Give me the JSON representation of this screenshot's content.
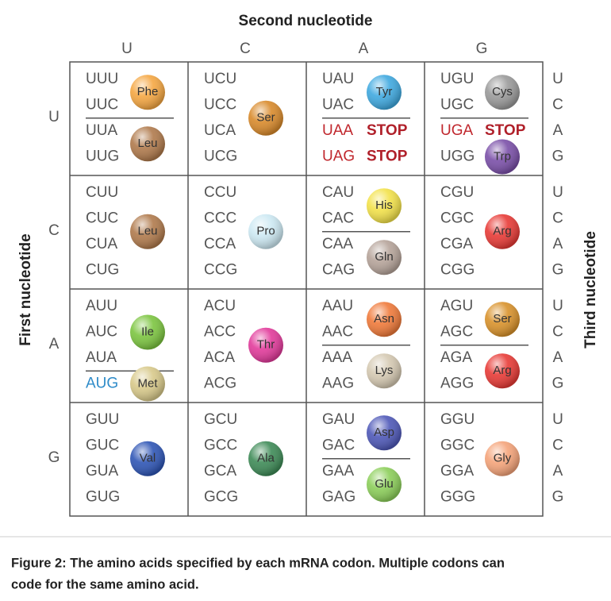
{
  "title": "Second nucleotide",
  "first_label": "First nucleotide",
  "third_label": "Third nucleotide",
  "columns": [
    "U",
    "C",
    "A",
    "G"
  ],
  "rows": [
    "U",
    "C",
    "A",
    "G"
  ],
  "third_letters": [
    "U",
    "C",
    "A",
    "G"
  ],
  "cells": [
    {
      "codons": [
        "UUU",
        "UUC",
        "UUA",
        "UUG"
      ],
      "aminos": [
        {
          "label": "Phe",
          "color": "#f5a742",
          "span": [
            0,
            1
          ]
        },
        {
          "label": "Leu",
          "color": "#b07a4c",
          "span": [
            2,
            3
          ]
        }
      ]
    },
    {
      "codons": [
        "UCU",
        "UCC",
        "UCA",
        "UCG"
      ],
      "aminos": [
        {
          "label": "Ser",
          "color": "#d98a2b",
          "span": [
            0,
            1,
            2,
            3
          ]
        }
      ]
    },
    {
      "codons": [
        "UAU",
        "UAC",
        {
          "text": "UAA",
          "color": "#c0272d",
          "tag": "STOP"
        },
        {
          "text": "UAG",
          "color": "#c0272d",
          "tag": "STOP"
        }
      ],
      "aminos": [
        {
          "label": "Tyr",
          "color": "#3fa9e0",
          "span": [
            0,
            1
          ]
        }
      ]
    },
    {
      "codons": [
        "UGU",
        "UGC",
        {
          "text": "UGA",
          "color": "#c0272d",
          "tag": "STOP"
        },
        "UGG"
      ],
      "aminos": [
        {
          "label": "Cys",
          "color": "#9a9a9a",
          "span": [
            0,
            1
          ]
        },
        {
          "label": "Trp",
          "color": "#7a4fa8",
          "span": [
            3
          ]
        }
      ]
    },
    {
      "codons": [
        "CUU",
        "CUC",
        "CUA",
        "CUG"
      ],
      "aminos": [
        {
          "label": "Leu",
          "color": "#b07a4c",
          "span": [
            0,
            1,
            2,
            3
          ]
        }
      ]
    },
    {
      "codons": [
        "CCU",
        "CCC",
        "CCA",
        "CCG"
      ],
      "aminos": [
        {
          "label": "Pro",
          "color": "#cde9f3",
          "span": [
            0,
            1,
            2,
            3
          ]
        }
      ]
    },
    {
      "codons": [
        "CAU",
        "CAC",
        "CAA",
        "CAG"
      ],
      "aminos": [
        {
          "label": "His",
          "color": "#f3e24a",
          "span": [
            0,
            1
          ]
        },
        {
          "label": "Gln",
          "color": "#b6a49a",
          "span": [
            2,
            3
          ]
        }
      ]
    },
    {
      "codons": [
        "CGU",
        "CGC",
        "CGA",
        "CGG"
      ],
      "aminos": [
        {
          "label": "Arg",
          "color": "#e83a36",
          "span": [
            0,
            1,
            2,
            3
          ]
        }
      ]
    },
    {
      "codons": [
        "AUU",
        "AUC",
        "AUA",
        {
          "text": "AUG",
          "color": "#2e8bc9"
        }
      ],
      "aminos": [
        {
          "label": "Ile",
          "color": "#7cc540",
          "span": [
            0,
            1,
            2
          ]
        },
        {
          "label": "Met",
          "color": "#d8c98a",
          "span": [
            3
          ]
        }
      ]
    },
    {
      "codons": [
        "ACU",
        "ACC",
        "ACA",
        "ACG"
      ],
      "aminos": [
        {
          "label": "Thr",
          "color": "#e23a9b",
          "span": [
            0,
            1,
            2,
            3
          ]
        }
      ]
    },
    {
      "codons": [
        "AAU",
        "AAC",
        "AAA",
        "AAG"
      ],
      "aminos": [
        {
          "label": "Asn",
          "color": "#f07a3a",
          "span": [
            0,
            1
          ]
        },
        {
          "label": "Lys",
          "color": "#d5c9b2",
          "span": [
            2,
            3
          ]
        }
      ]
    },
    {
      "codons": [
        "AGU",
        "AGC",
        "AGA",
        "AGG"
      ],
      "aminos": [
        {
          "label": "Ser",
          "color": "#d9922b",
          "span": [
            0,
            1
          ]
        },
        {
          "label": "Arg",
          "color": "#e83a36",
          "span": [
            2,
            3
          ]
        }
      ]
    },
    {
      "codons": [
        "GUU",
        "GUC",
        "GUA",
        "GUG"
      ],
      "aminos": [
        {
          "label": "Val",
          "color": "#2e55b5",
          "span": [
            0,
            1,
            2,
            3
          ]
        }
      ]
    },
    {
      "codons": [
        "GCU",
        "GCC",
        "GCA",
        "GCG"
      ],
      "aminos": [
        {
          "label": "Ala",
          "color": "#3e8b57",
          "span": [
            0,
            1,
            2,
            3
          ]
        }
      ]
    },
    {
      "codons": [
        "GAU",
        "GAC",
        "GAA",
        "GAG"
      ],
      "aminos": [
        {
          "label": "Asp",
          "color": "#4e58b8",
          "span": [
            0,
            1
          ]
        },
        {
          "label": "Glu",
          "color": "#8ccf5a",
          "span": [
            2,
            3
          ]
        }
      ]
    },
    {
      "codons": [
        "GGU",
        "GGC",
        "GGA",
        "GGG"
      ],
      "aminos": [
        {
          "label": "Gly",
          "color": "#f5a47a",
          "span": [
            0,
            1,
            2,
            3
          ]
        }
      ]
    }
  ],
  "caption": [
    "Figure 2: The amino acids specified by each mRNA codon. Multiple codons can",
    "code for the same amino acid."
  ]
}
